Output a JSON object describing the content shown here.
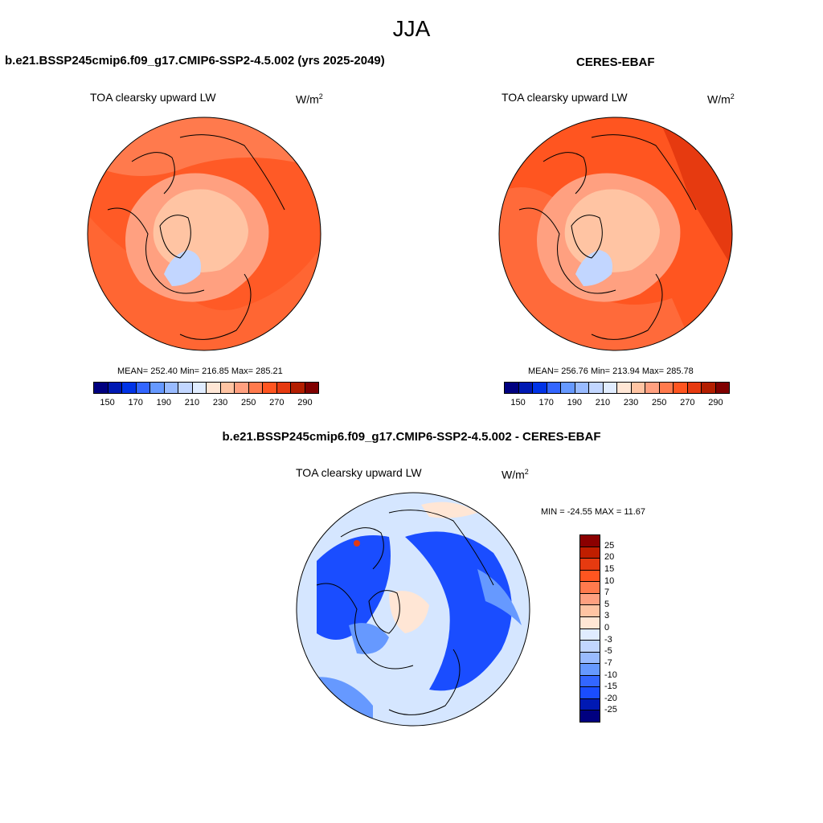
{
  "main_title": "JJA",
  "panels": [
    {
      "title": "b.e21.BSSP245cmip6.f09_g17.CMIP6-SSP2-4.5.002 (yrs 2025-2049)",
      "field": "TOA clearsky upward LW",
      "units": "W/m",
      "units_sup": "2",
      "stats": "MEAN= 252.40  Min= 216.85  Max= 285.21"
    },
    {
      "title": "CERES-EBAF",
      "field": "TOA clearsky upward LW",
      "units": "W/m",
      "units_sup": "2",
      "stats": "MEAN= 256.76  Min= 213.94  Max= 285.78"
    },
    {
      "title": "b.e21.BSSP245cmip6.f09_g17.CMIP6-SSP2-4.5.002 - CERES-EBAF",
      "field": "TOA clearsky upward LW",
      "units": "W/m",
      "units_sup": "2",
      "stats": "MIN = -24.55 MAX =  11.67"
    }
  ],
  "abs_colorbar": {
    "colors": [
      "#000080",
      "#0019b3",
      "#0033e6",
      "#3366ff",
      "#6699ff",
      "#99bbff",
      "#c2d6ff",
      "#e0ecff",
      "#ffe6d5",
      "#ffc4a3",
      "#ffa080",
      "#ff7a4d",
      "#ff5520",
      "#e63a10",
      "#b31e00",
      "#800000"
    ],
    "ticks": [
      "150",
      "170",
      "190",
      "210",
      "230",
      "250",
      "270",
      "290"
    ]
  },
  "diff_colorbar": {
    "colors": [
      "#8b0000",
      "#c01e00",
      "#e63a10",
      "#ff5520",
      "#ff7a4d",
      "#ffa080",
      "#ffc4a3",
      "#ffe6d5",
      "#e0ecff",
      "#c2d6ff",
      "#99bbff",
      "#6699ff",
      "#3366ff",
      "#1a4dff",
      "#0019b3",
      "#000080"
    ],
    "ticks": [
      "25",
      "20",
      "15",
      "10",
      "7",
      "5",
      "3",
      "0",
      "-3",
      "-5",
      "-7",
      "-10",
      "-15",
      "-20",
      "-25"
    ]
  },
  "map_colors": {
    "warm_outer": "#ff5a26",
    "warm_mid": "#ff7a4d",
    "warm_inner": "#ffa080",
    "pale": "#ffc4a3",
    "ice": "#c2d6ff",
    "cool_bg": "#d5e6ff",
    "cool_mid": "#6699ff",
    "cool_deep": "#1a4dff"
  }
}
